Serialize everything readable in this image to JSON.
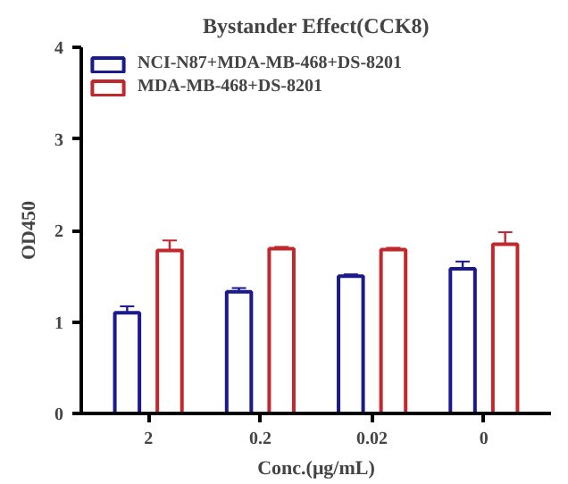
{
  "chart_data": {
    "type": "bar",
    "title": "Bystander Effect(CCK8)",
    "xlabel": "Conc.(μg/mL)",
    "ylabel": "OD450",
    "categories": [
      "2",
      "0.2",
      "0.02",
      "0"
    ],
    "series": [
      {
        "name": "NCI-N87+MDA-MB-468+DS-8201",
        "color": "#1a1a8c",
        "values": [
          1.1,
          1.33,
          1.5,
          1.58
        ],
        "errors": [
          0.07,
          0.04,
          0.02,
          0.08
        ]
      },
      {
        "name": "MDA-MB-468+DS-8201",
        "color": "#c0282d",
        "values": [
          1.78,
          1.8,
          1.79,
          1.85
        ],
        "errors": [
          0.11,
          0.02,
          0.02,
          0.13
        ]
      }
    ],
    "ylim": [
      0,
      4
    ],
    "yticks": [
      0,
      1,
      2,
      3,
      4
    ],
    "grid": false,
    "legend": "top left"
  }
}
